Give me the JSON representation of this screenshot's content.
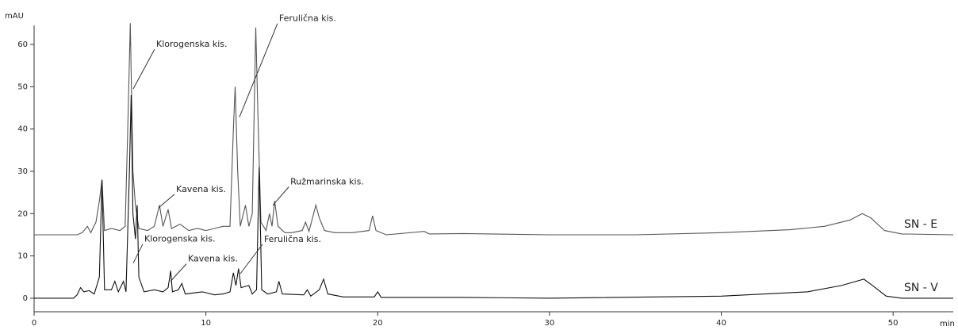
{
  "chart_data": {
    "type": "line",
    "y_label": "mAU",
    "x_label": "min",
    "xlim": [
      0,
      53.5
    ],
    "ylim": [
      -3.2,
      64.5
    ],
    "xticks": [
      0,
      10,
      20,
      30,
      40,
      50
    ],
    "yticks": [
      0,
      10,
      20,
      30,
      40,
      50,
      60
    ],
    "series": [
      {
        "name": "SN - E",
        "color": "#555555",
        "x": [
          0,
          2.5,
          2.8,
          3.1,
          3.3,
          3.6,
          3.8,
          3.95,
          4.1,
          4.5,
          5.0,
          5.3,
          5.45,
          5.6,
          5.75,
          5.9,
          6.1,
          6.6,
          7.0,
          7.3,
          7.5,
          7.8,
          8.0,
          8.5,
          9,
          9.5,
          10,
          10.5,
          11,
          11.4,
          11.6,
          11.7,
          11.85,
          12.0,
          12.3,
          12.5,
          12.7,
          12.9,
          13.05,
          13.2,
          13.5,
          13.7,
          13.85,
          14.0,
          14.2,
          14.6,
          15,
          15.6,
          15.8,
          16.0,
          16.4,
          16.6,
          16.9,
          17.5,
          18.5,
          19.5,
          19.7,
          19.9,
          20.5,
          22.7,
          23,
          25,
          30,
          35,
          40,
          44,
          46,
          47.5,
          48.2,
          48.7,
          49.5,
          50.5,
          53.5
        ],
        "values": [
          15,
          15,
          15.5,
          17,
          15.5,
          18,
          23,
          28,
          16,
          16.5,
          16,
          17,
          40,
          65,
          30,
          22,
          16.5,
          16,
          17,
          22,
          17,
          21,
          16.5,
          17.5,
          16,
          16.5,
          16,
          16.5,
          17,
          17,
          40,
          50,
          30,
          17,
          22,
          17,
          20,
          64,
          40,
          18,
          16,
          20,
          17,
          23,
          17,
          15.5,
          15.5,
          16,
          18,
          15.8,
          22,
          19,
          16,
          15.5,
          15.5,
          16,
          19.5,
          16,
          15,
          15.8,
          15.2,
          15.3,
          15,
          15,
          15.5,
          16.2,
          17,
          18.5,
          20,
          19,
          16,
          15.2,
          15
        ]
      },
      {
        "name": "SN - V",
        "color": "#111111",
        "x": [
          0,
          2.3,
          2.5,
          2.7,
          2.9,
          3.2,
          3.5,
          3.8,
          3.95,
          4.1,
          4.5,
          4.7,
          4.9,
          5.2,
          5.35,
          5.55,
          5.65,
          5.75,
          5.9,
          6.0,
          6.1,
          6.4,
          7,
          7.5,
          7.8,
          7.95,
          8.05,
          8.4,
          8.6,
          8.8,
          9.8,
          10.5,
          11,
          11.4,
          11.6,
          11.75,
          11.9,
          12.05,
          12.5,
          12.7,
          12.95,
          13.1,
          13.25,
          13.6,
          14.1,
          14.25,
          14.45,
          15.7,
          15.9,
          16.1,
          16.6,
          16.85,
          17.1,
          18,
          19.8,
          20.0,
          20.2,
          25,
          30,
          40,
          45,
          47,
          48.3,
          48.8,
          49.6,
          50.5,
          53.5
        ],
        "values": [
          0,
          0,
          0.8,
          2.5,
          1.5,
          1.8,
          1,
          5,
          28,
          2,
          2,
          4,
          1.5,
          4,
          1.5,
          30,
          48,
          20,
          14,
          22,
          5,
          1.5,
          2,
          1.5,
          2.5,
          6.5,
          1.5,
          2,
          3.5,
          1,
          1.5,
          0.8,
          1,
          1.5,
          6,
          3,
          7,
          2.5,
          3,
          1,
          2,
          31,
          2,
          1,
          1.5,
          4,
          1,
          0.8,
          2,
          0.5,
          2,
          4.5,
          1,
          0.3,
          0.3,
          1.5,
          0.2,
          0.2,
          0,
          0.5,
          1.5,
          3,
          4.5,
          3,
          0.5,
          0,
          0
        ]
      }
    ],
    "annotations": [
      {
        "text": "Klorogenska kis.",
        "x": 5.77,
        "y": 49.5
      },
      {
        "text": "Ferulična kis.",
        "x": 11.95,
        "y": 42.8
      },
      {
        "text": "Kavena kis.",
        "x": 7.25,
        "y": 21.4
      },
      {
        "text": "Ružmarinska kis.",
        "x": 13.9,
        "y": 22
      },
      {
        "text": "Klorogenska kis.",
        "x": 5.77,
        "y": 8.3
      },
      {
        "text": "Kavena kis.",
        "x": 7.94,
        "y": 4
      },
      {
        "text": "Ferulična kis.",
        "x": 12.0,
        "y": 5.8
      }
    ]
  }
}
